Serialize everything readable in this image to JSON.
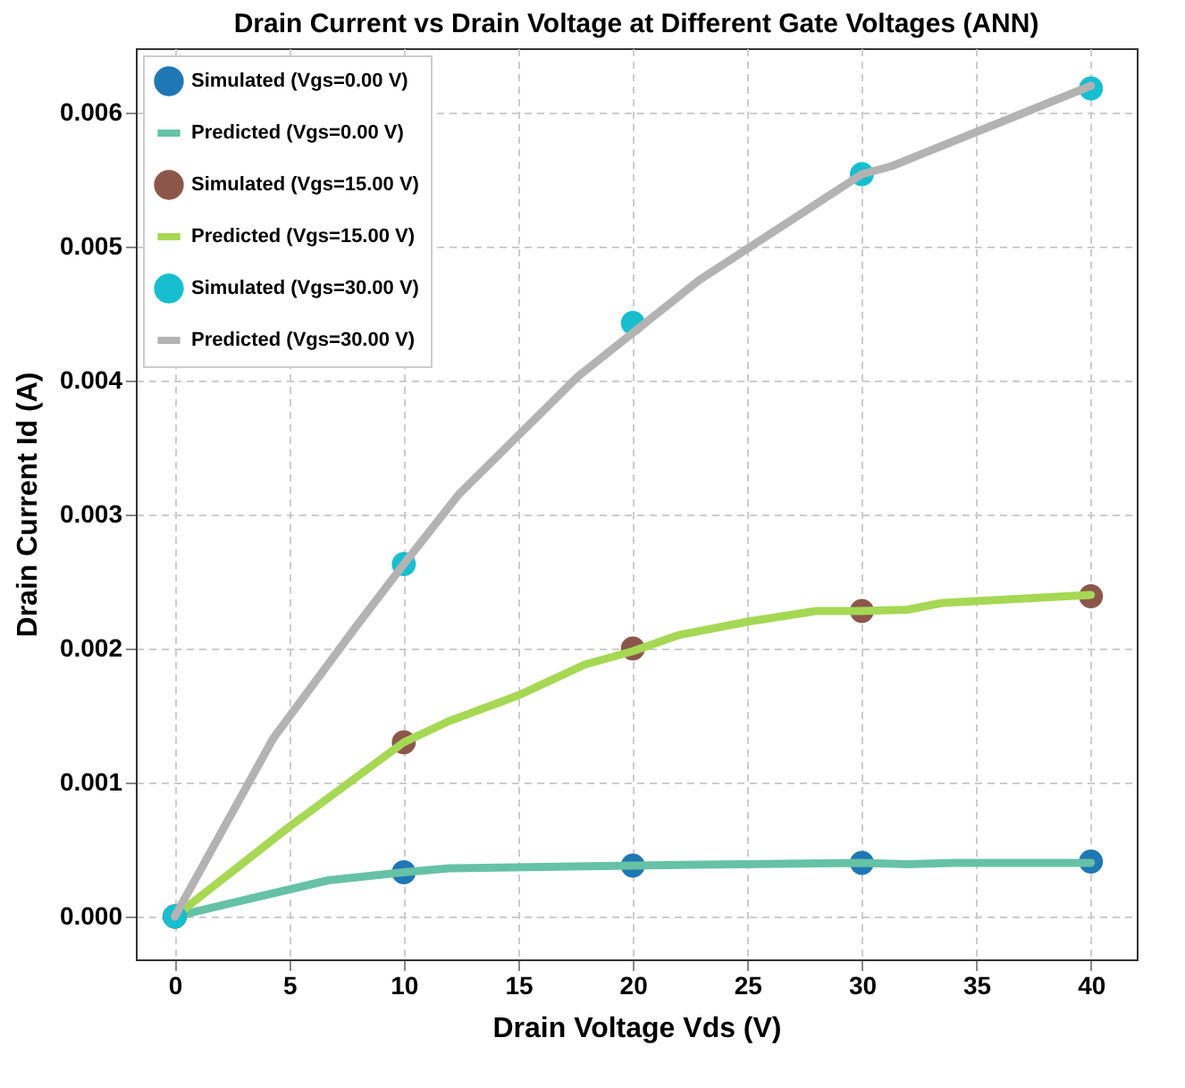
{
  "chart_data": {
    "type": "line",
    "title": "Drain Current vs Drain Voltage at Different Gate Voltages (ANN)",
    "xlabel": "Drain Voltage Vds (V)",
    "ylabel": "Drain Current Id (A)",
    "xlim": [
      -1.7,
      42
    ],
    "xticks": [
      0,
      5,
      10,
      15,
      20,
      25,
      30,
      35,
      40
    ],
    "ylim": [
      -0.00032,
      0.00648
    ],
    "yticks": [
      {
        "value": 0,
        "label": "0.000"
      },
      {
        "value": 0.001,
        "label": "0.001"
      },
      {
        "value": 0.002,
        "label": "0.002"
      },
      {
        "value": 0.003,
        "label": "0.003"
      },
      {
        "value": 0.004,
        "label": "0.004"
      },
      {
        "value": 0.005,
        "label": "0.005"
      },
      {
        "value": 0.006,
        "label": "0.006"
      }
    ],
    "grid": true,
    "legend": "top left",
    "line_style": "solid",
    "series": [
      {
        "name": "Simulated (Vgs=0.00 V)",
        "type": "scatter",
        "marker": "circle",
        "color": "#1f77b4",
        "x": [
          0,
          10,
          20,
          30,
          40
        ],
        "values": [
          0,
          0.00033,
          0.00038,
          0.0004,
          0.00041
        ]
      },
      {
        "name": "Predicted (Vgs=0.00 V)",
        "color": "#66c2a5",
        "x": [
          0,
          6.7,
          10,
          12,
          20,
          30,
          32,
          34,
          40
        ],
        "values": [
          0,
          0.00027,
          0.00033,
          0.00036,
          0.00038,
          0.0004,
          0.00039,
          0.0004,
          0.0004
        ]
      },
      {
        "name": "Simulated (Vgs=15.00 V)",
        "type": "scatter",
        "marker": "circle",
        "color": "#8c564b",
        "x": [
          0,
          10,
          20,
          30,
          40
        ],
        "values": [
          0,
          0.0013,
          0.002,
          0.00228,
          0.00239
        ]
      },
      {
        "name": "Predicted (Vgs=15.00 V)",
        "color": "#a6d854",
        "x": [
          0,
          5,
          10,
          12,
          15,
          17.9,
          20,
          22,
          25,
          28,
          30,
          32,
          33.5,
          40
        ],
        "values": [
          0,
          0.00067,
          0.0013,
          0.00146,
          0.00165,
          0.00188,
          0.00198,
          0.0021,
          0.0022,
          0.00228,
          0.00228,
          0.00229,
          0.00234,
          0.0024
        ]
      },
      {
        "name": "Simulated (Vgs=30.00 V)",
        "type": "scatter",
        "marker": "circle",
        "color": "#17becf",
        "x": [
          0,
          10,
          20,
          30,
          40
        ],
        "values": [
          0,
          0.00263,
          0.00443,
          0.00554,
          0.00618
        ]
      },
      {
        "name": "Predicted (Vgs=30.00 V)",
        "color": "#b3b3b3",
        "x": [
          0,
          4.3,
          7.9,
          10,
          12.4,
          17.6,
          22.9,
          30,
          31.3,
          40
        ],
        "values": [
          0,
          0.00133,
          0.00216,
          0.00263,
          0.00315,
          0.00403,
          0.00475,
          0.00554,
          0.0056,
          0.0062
        ]
      }
    ]
  }
}
